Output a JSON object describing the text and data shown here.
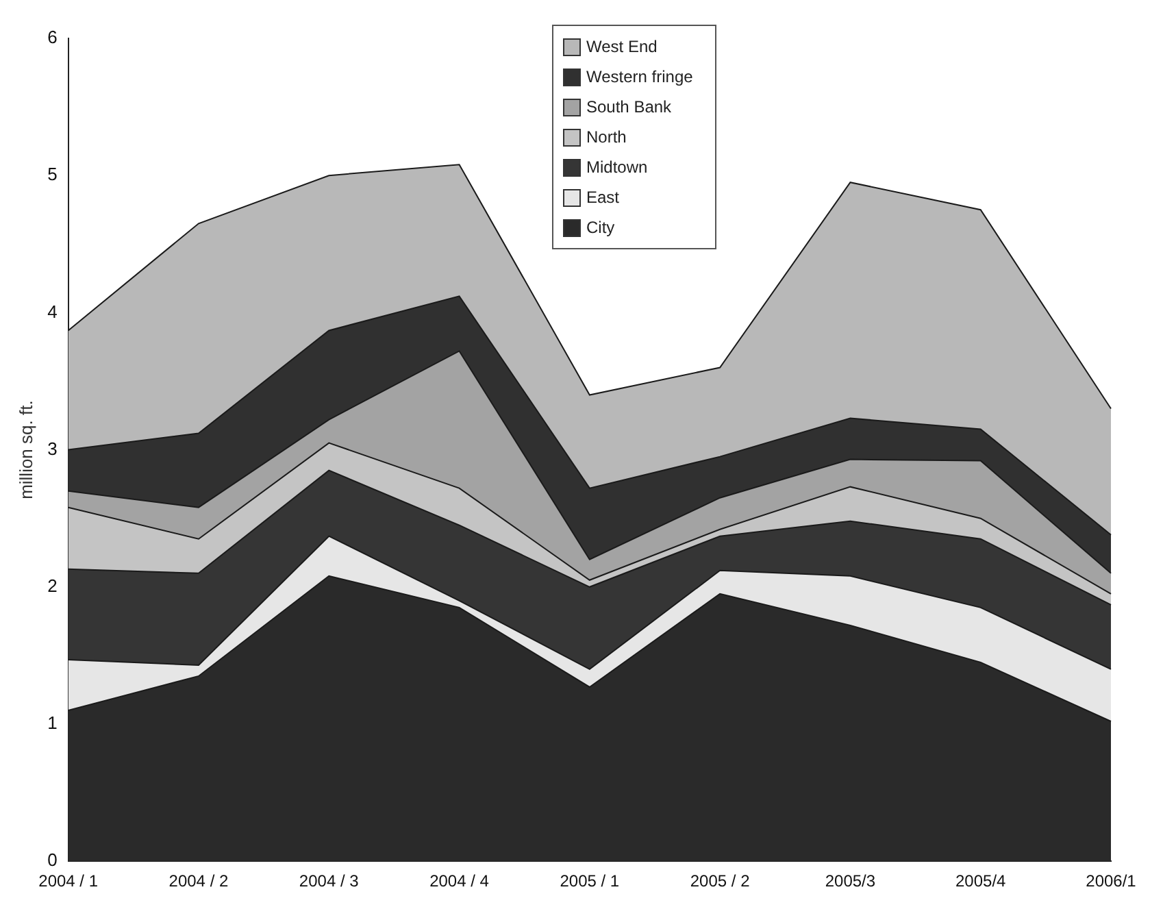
{
  "chart_data": {
    "type": "area",
    "stacked": true,
    "ylabel": "million sq. ft.",
    "categories": [
      "2004 / 1",
      "2004 / 2",
      "2004 / 3",
      "2004 / 4",
      "2005 / 1",
      "2005 / 2",
      "2005/3",
      "2005/4",
      "2006/1"
    ],
    "ylim": [
      0,
      6
    ],
    "yticks": [
      0,
      1,
      2,
      3,
      4,
      5,
      6
    ],
    "legend": "top",
    "series": [
      {
        "name": "City",
        "color": "#2a2a2a",
        "values": [
          1.1,
          1.35,
          2.08,
          1.85,
          1.27,
          1.95,
          1.72,
          1.45,
          1.02
        ]
      },
      {
        "name": "East",
        "color": "#e6e6e6",
        "values": [
          0.37,
          0.08,
          0.29,
          0.05,
          0.13,
          0.17,
          0.36,
          0.4,
          0.38
        ]
      },
      {
        "name": "Midtown",
        "color": "#353535",
        "values": [
          0.66,
          0.67,
          0.48,
          0.55,
          0.6,
          0.25,
          0.4,
          0.5,
          0.47
        ]
      },
      {
        "name": "North",
        "color": "#c4c4c4",
        "values": [
          0.45,
          0.25,
          0.2,
          0.27,
          0.05,
          0.05,
          0.25,
          0.15,
          0.08
        ]
      },
      {
        "name": "South Bank",
        "color": "#a3a3a3",
        "values": [
          0.12,
          0.23,
          0.17,
          1.0,
          0.15,
          0.23,
          0.2,
          0.42,
          0.15
        ]
      },
      {
        "name": "Western fringe",
        "color": "#303030",
        "values": [
          0.3,
          0.54,
          0.65,
          0.4,
          0.52,
          0.3,
          0.3,
          0.23,
          0.28
        ]
      },
      {
        "name": "West End",
        "color": "#b8b8b8",
        "values": [
          0.87,
          1.53,
          1.13,
          0.96,
          0.68,
          0.65,
          1.72,
          1.6,
          0.92
        ]
      }
    ]
  }
}
